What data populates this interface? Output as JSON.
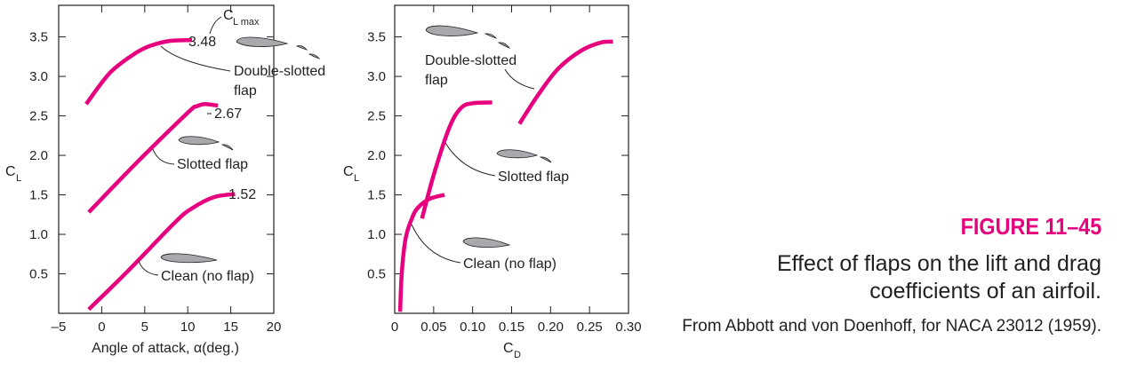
{
  "colors": {
    "curve": "#e6007e",
    "axis": "#231f20",
    "airfoil": "#a7a9ac",
    "caption_accent": "#e6007e"
  },
  "caption": {
    "figure_number": "FIGURE 11–45",
    "title": "Effect of flaps on the lift and drag coefficients of an airfoil.",
    "source": "From Abbott and von Doenhoff, for NACA 23012 (1959)."
  },
  "chart_data": [
    {
      "type": "line",
      "xlabel": "Angle of attack, α(deg.)",
      "ylabel": "C_L",
      "xlim": [
        -5,
        20
      ],
      "ylim": [
        0,
        3.9
      ],
      "xticks": [
        -5,
        0,
        5,
        10,
        15,
        20
      ],
      "yticks": [
        0.5,
        1.0,
        1.5,
        2.0,
        2.5,
        3.0,
        3.5
      ],
      "xtick_labels": [
        "–5",
        "0",
        "5",
        "10",
        "15",
        "20"
      ],
      "ytick_labels": [
        "0.5",
        "1.0",
        "1.5",
        "2.0",
        "2.5",
        "3.0",
        "3.5"
      ],
      "series": [
        {
          "name": "Double-slotted flap",
          "max_label": "3.48",
          "x": [
            -1.8,
            1,
            4,
            6,
            8,
            10.5
          ],
          "y": [
            2.65,
            3.05,
            3.3,
            3.4,
            3.45,
            3.46
          ]
        },
        {
          "name": "Slotted flap",
          "max_label": "2.67",
          "x": [
            -1.5,
            4,
            10,
            11,
            12,
            13.5
          ],
          "y": [
            1.28,
            1.9,
            2.54,
            2.62,
            2.65,
            2.63
          ]
        },
        {
          "name": "Clean (no flap)",
          "max_label": "1.52",
          "x": [
            -1.5,
            3,
            8.5,
            10.5,
            13,
            15.5
          ],
          "y": [
            0.05,
            0.53,
            1.15,
            1.33,
            1.47,
            1.51
          ]
        }
      ],
      "annotations": [
        "C_L max",
        "Double-slotted flap",
        "Slotted flap",
        "Clean (no flap)"
      ]
    },
    {
      "type": "line",
      "xlabel": "C_D",
      "ylabel": "C_L",
      "xlim": [
        0,
        0.3
      ],
      "ylim": [
        0,
        3.9
      ],
      "xticks": [
        0,
        0.05,
        0.1,
        0.15,
        0.2,
        0.25,
        0.3
      ],
      "yticks": [
        0.5,
        1.0,
        1.5,
        2.0,
        2.5,
        3.0,
        3.5
      ],
      "xtick_labels": [
        "0",
        "0.05",
        "0.10",
        "0.15",
        "0.20",
        "0.25",
        "0.30"
      ],
      "ytick_labels": [
        "0.5",
        "1.0",
        "1.5",
        "2.0",
        "2.5",
        "3.0",
        "3.5"
      ],
      "series": [
        {
          "name": "Double-slotted flap",
          "x": [
            0.16,
            0.185,
            0.21,
            0.24,
            0.265,
            0.28
          ],
          "y": [
            2.4,
            2.78,
            3.1,
            3.33,
            3.43,
            3.44
          ]
        },
        {
          "name": "Slotted flap",
          "x": [
            0.035,
            0.05,
            0.07,
            0.085,
            0.1,
            0.125
          ],
          "y": [
            1.2,
            1.75,
            2.35,
            2.6,
            2.66,
            2.67
          ]
        },
        {
          "name": "Clean (no flap)",
          "x": [
            0.007,
            0.009,
            0.014,
            0.022,
            0.03,
            0.045,
            0.064
          ],
          "y": [
            0.02,
            0.5,
            0.95,
            1.2,
            1.34,
            1.45,
            1.5
          ]
        }
      ],
      "annotations": [
        "Double-slotted flap",
        "Slotted flap",
        "Clean (no flap)"
      ]
    }
  ]
}
